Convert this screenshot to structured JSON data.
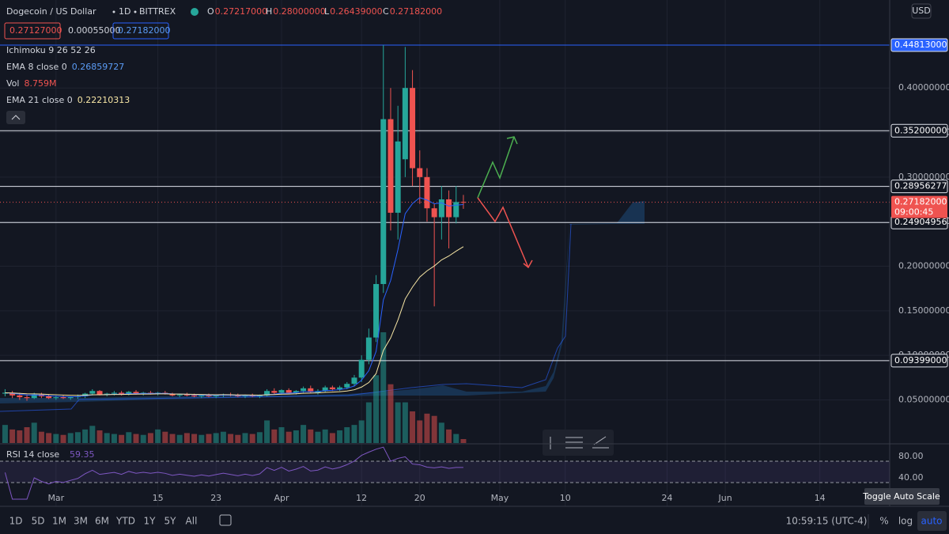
{
  "header": {
    "title": "Dogecoin / US Dollar",
    "interval": "1D",
    "exchange": "BITTREX",
    "ohlc": [
      {
        "key": "O",
        "value": "0.27217000"
      },
      {
        "key": "H",
        "value": "0.28000000"
      },
      {
        "key": "L",
        "value": "0.26439000"
      },
      {
        "key": "C",
        "value": "0.27182000"
      }
    ],
    "bid": "0.27127000",
    "spread": "0.00055000",
    "ask": "0.27182000",
    "currency": "USD"
  },
  "indicators": [
    {
      "label": "Ichimoku 9 26 52 26"
    },
    {
      "label": "EMA 8 close 0",
      "value": "0.26859727"
    },
    {
      "label": "Vol",
      "value": "8.759M"
    },
    {
      "label": "EMA 21 close 0",
      "value": "0.22210313"
    }
  ],
  "chart_data": {
    "type": "candlestick",
    "x": [
      -7,
      -6,
      -5,
      -4,
      -3,
      -2,
      -1,
      0,
      1,
      2,
      3,
      4,
      5,
      6,
      7,
      8,
      9,
      10,
      11,
      12,
      13,
      14,
      15,
      16,
      17,
      18,
      19,
      20,
      21,
      22,
      23,
      24,
      25,
      26,
      27,
      28,
      29,
      30,
      31,
      32,
      33,
      34,
      35,
      36,
      37,
      38,
      39,
      40,
      41,
      42,
      43,
      44,
      45,
      46,
      47,
      48,
      49,
      50,
      51,
      52,
      53,
      54,
      55,
      56
    ],
    "candles": [
      [
        0.057,
        0.062,
        0.054,
        0.058
      ],
      [
        0.058,
        0.06,
        0.052,
        0.055
      ],
      [
        0.055,
        0.058,
        0.05,
        0.053
      ],
      [
        0.053,
        0.056,
        0.049,
        0.052
      ],
      [
        0.052,
        0.058,
        0.051,
        0.056
      ],
      [
        0.056,
        0.058,
        0.052,
        0.054
      ],
      [
        0.054,
        0.056,
        0.051,
        0.052
      ],
      [
        0.052,
        0.055,
        0.05,
        0.053
      ],
      [
        0.053,
        0.055,
        0.051,
        0.052
      ],
      [
        0.052,
        0.054,
        0.05,
        0.053
      ],
      [
        0.053,
        0.056,
        0.051,
        0.054
      ],
      [
        0.054,
        0.058,
        0.052,
        0.057
      ],
      [
        0.057,
        0.062,
        0.055,
        0.06
      ],
      [
        0.06,
        0.061,
        0.055,
        0.056
      ],
      [
        0.056,
        0.058,
        0.054,
        0.057
      ],
      [
        0.057,
        0.06,
        0.055,
        0.058
      ],
      [
        0.058,
        0.06,
        0.055,
        0.056
      ],
      [
        0.056,
        0.06,
        0.055,
        0.059
      ],
      [
        0.059,
        0.061,
        0.056,
        0.057
      ],
      [
        0.057,
        0.059,
        0.055,
        0.058
      ],
      [
        0.058,
        0.06,
        0.056,
        0.057
      ],
      [
        0.057,
        0.059,
        0.055,
        0.058
      ],
      [
        0.058,
        0.06,
        0.056,
        0.057
      ],
      [
        0.057,
        0.058,
        0.054,
        0.055
      ],
      [
        0.055,
        0.057,
        0.053,
        0.056
      ],
      [
        0.056,
        0.058,
        0.054,
        0.055
      ],
      [
        0.055,
        0.057,
        0.053,
        0.054
      ],
      [
        0.054,
        0.056,
        0.052,
        0.055
      ],
      [
        0.055,
        0.057,
        0.053,
        0.054
      ],
      [
        0.054,
        0.056,
        0.052,
        0.055
      ],
      [
        0.055,
        0.057,
        0.053,
        0.056
      ],
      [
        0.056,
        0.058,
        0.054,
        0.055
      ],
      [
        0.055,
        0.057,
        0.053,
        0.054
      ],
      [
        0.054,
        0.056,
        0.052,
        0.055
      ],
      [
        0.055,
        0.057,
        0.053,
        0.054
      ],
      [
        0.054,
        0.056,
        0.052,
        0.055
      ],
      [
        0.055,
        0.062,
        0.054,
        0.06
      ],
      [
        0.06,
        0.063,
        0.056,
        0.058
      ],
      [
        0.058,
        0.062,
        0.056,
        0.061
      ],
      [
        0.061,
        0.063,
        0.057,
        0.058
      ],
      [
        0.058,
        0.061,
        0.056,
        0.06
      ],
      [
        0.06,
        0.065,
        0.058,
        0.063
      ],
      [
        0.063,
        0.066,
        0.058,
        0.059
      ],
      [
        0.058,
        0.062,
        0.056,
        0.06
      ],
      [
        0.06,
        0.066,
        0.058,
        0.064
      ],
      [
        0.064,
        0.066,
        0.06,
        0.062
      ],
      [
        0.062,
        0.066,
        0.06,
        0.064
      ],
      [
        0.064,
        0.07,
        0.062,
        0.068
      ],
      [
        0.068,
        0.078,
        0.065,
        0.075
      ],
      [
        0.075,
        0.1,
        0.07,
        0.095
      ],
      [
        0.095,
        0.13,
        0.09,
        0.12
      ],
      [
        0.12,
        0.19,
        0.115,
        0.18
      ],
      [
        0.18,
        0.448,
        0.17,
        0.365
      ],
      [
        0.365,
        0.4,
        0.24,
        0.26
      ],
      [
        0.26,
        0.38,
        0.23,
        0.34
      ],
      [
        0.32,
        0.446,
        0.3,
        0.4
      ],
      [
        0.4,
        0.42,
        0.29,
        0.31
      ],
      [
        0.31,
        0.33,
        0.27,
        0.3
      ],
      [
        0.3,
        0.31,
        0.25,
        0.265
      ],
      [
        0.265,
        0.27,
        0.155,
        0.255
      ],
      [
        0.255,
        0.29,
        0.23,
        0.275
      ],
      [
        0.275,
        0.285,
        0.22,
        0.255
      ],
      [
        0.255,
        0.29,
        0.248,
        0.272
      ],
      [
        0.27217,
        0.28,
        0.26439,
        0.27182
      ]
    ],
    "volume": [
      40,
      30,
      28,
      35,
      45,
      25,
      22,
      20,
      18,
      22,
      24,
      30,
      38,
      28,
      22,
      20,
      18,
      24,
      20,
      18,
      22,
      30,
      25,
      20,
      18,
      22,
      20,
      18,
      20,
      22,
      25,
      20,
      18,
      22,
      20,
      24,
      50,
      30,
      35,
      25,
      28,
      40,
      30,
      25,
      30,
      22,
      28,
      35,
      40,
      50,
      90,
      150,
      245,
      130,
      90,
      90,
      70,
      50,
      65,
      60,
      45,
      30,
      20,
      8.759
    ],
    "xlim": [
      -7.7,
      114.6
    ],
    "xticks": [
      {
        "value": 0,
        "label": "Mar"
      },
      {
        "value": 14,
        "label": "15"
      },
      {
        "value": 22,
        "label": "23"
      },
      {
        "value": 31,
        "label": "Apr"
      },
      {
        "value": 42,
        "label": "12"
      },
      {
        "value": 50,
        "label": "20"
      },
      {
        "value": 61,
        "label": "May"
      },
      {
        "value": 70,
        "label": "10"
      },
      {
        "value": 84,
        "label": "24"
      },
      {
        "value": 92,
        "label": "Jun"
      },
      {
        "value": 105,
        "label": "14"
      }
    ],
    "ylim": [
      0.0016,
      0.4987
    ],
    "yticks": [
      {
        "value": 0.05,
        "label": "0.05000000"
      },
      {
        "value": 0.1,
        "label": "0.10000000"
      },
      {
        "value": 0.15,
        "label": "0.15000000"
      },
      {
        "value": 0.2,
        "label": "0.20000000"
      },
      {
        "value": 0.25,
        "label": "0.25000000"
      },
      {
        "value": 0.3,
        "label": "0.30000000"
      },
      {
        "value": 0.35,
        "label": "0.35000000"
      },
      {
        "value": 0.4,
        "label": "0.40000000"
      }
    ],
    "levels": [
      {
        "value": 0.44813,
        "label": "0.44813000"
      },
      {
        "value": 0.352,
        "label": "0.35200000"
      },
      {
        "value": 0.28956277,
        "label": "0.28956277"
      },
      {
        "value": 0.24904956,
        "label": "0.24904956"
      },
      {
        "value": 0.09399,
        "label": "0.09399000"
      }
    ],
    "last_price": {
      "value": 0.27182,
      "label": "0.27182000",
      "countdown": "09:00:45"
    },
    "up_color": "#26a69a",
    "down_color": "#ef5350"
  },
  "rsi": {
    "label": "RSI 14 close",
    "value": "59.35",
    "ylim": [
      16.3,
      100.7
    ],
    "yticks": [
      {
        "value": 80,
        "label": "80.00"
      },
      {
        "value": 40,
        "label": "40.00"
      }
    ]
  },
  "toolbar": {
    "ranges": [
      "1D",
      "5D",
      "1M",
      "3M",
      "6M",
      "YTD",
      "1Y",
      "5Y",
      "All"
    ],
    "clock": "10:59:15 (UTC-4)",
    "percent": "%",
    "log": "log",
    "auto": "auto",
    "tooltip": "Toggle Auto Scale"
  }
}
